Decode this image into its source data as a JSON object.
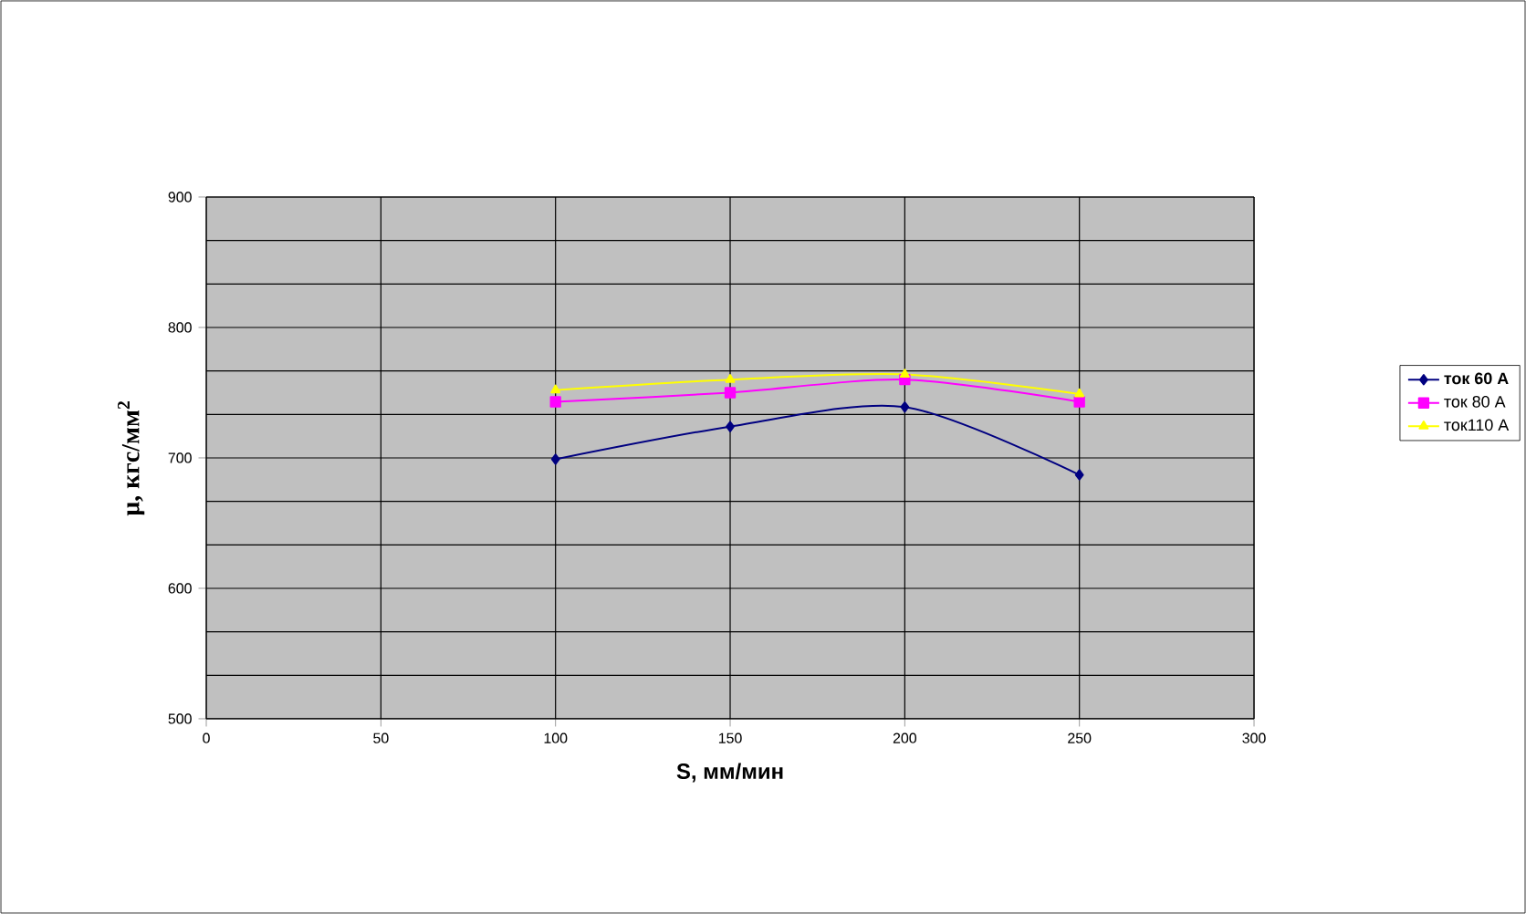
{
  "chart_data": {
    "type": "line",
    "xlabel": "S,  мм/мин",
    "ylabel": "μ, кгс/мм$^{2}$",
    "xlim": [
      0,
      300
    ],
    "ylim": [
      500,
      900
    ],
    "xticks": [
      0,
      50,
      100,
      150,
      200,
      250,
      300
    ],
    "yticks": [
      500,
      600,
      700,
      800,
      900
    ],
    "grid": true,
    "legend": "right",
    "x": [
      100,
      150,
      200,
      250
    ],
    "series": [
      {
        "name": "**ток 60 А**",
        "color": "#000080",
        "marker": "diamond",
        "values": [
          699,
          724,
          739,
          687
        ]
      },
      {
        "name": "ток 80 А",
        "color": "#ff00ff",
        "marker": "square",
        "values": [
          743,
          750,
          760,
          743
        ]
      },
      {
        "name": "ток110 А",
        "color": "#ffff00",
        "marker": "triangle",
        "values": [
          752,
          760,
          764,
          749
        ]
      }
    ]
  }
}
